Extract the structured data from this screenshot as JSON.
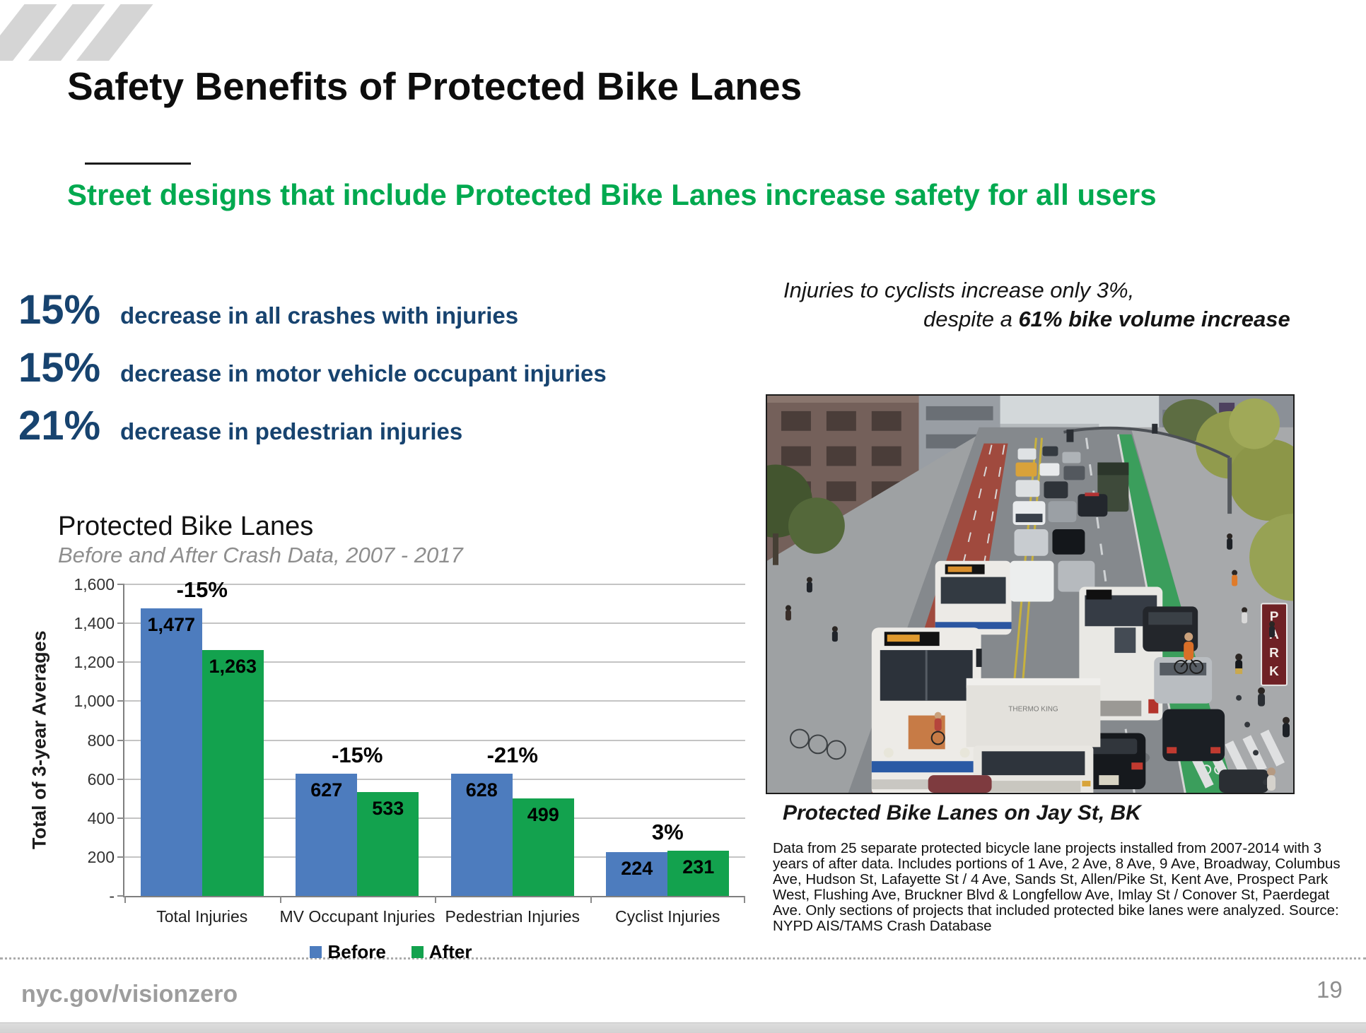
{
  "slide": {
    "title": "Safety Benefits of Protected Bike Lanes",
    "subtitle": "Street designs that include Protected Bike Lanes increase safety for all users",
    "footer_url": "nyc.gov/visionzero",
    "page_number": "19"
  },
  "stats": {
    "items": [
      {
        "pct": "15%",
        "label": "decrease in all crashes with injuries"
      },
      {
        "pct": "15%",
        "label": "decrease in motor vehicle occupant injuries"
      },
      {
        "pct": "21%",
        "label": "decrease in pedestrian injuries"
      }
    ]
  },
  "cyclist_note": {
    "line1": "Injuries to cyclists increase only 3%,",
    "line2_prefix": "despite a ",
    "line2_bold": "61% bike volume increase"
  },
  "photo": {
    "caption": "Protected Bike Lanes on Jay St, BK",
    "park_sign": "PARK",
    "truck_text": "THERMO KING"
  },
  "source_note": "Data from 25 separate protected bicycle lane projects installed from 2007-2014 with 3 years of after data. Includes portions of 1 Ave, 2 Ave, 8 Ave, 9 Ave, Broadway, Columbus Ave, Hudson St, Lafayette St / 4 Ave, Sands St, Allen/Pike St, Kent Ave, Prospect Park West, Flushing Ave, Bruckner Blvd & Longfellow Ave, Imlay St / Conover St, Paerdegat Ave. Only sections of projects that included protected bike lanes were analyzed. Source: NYPD AIS/TAMS Crash Database",
  "chart_data": {
    "type": "bar",
    "title": "Protected Bike Lanes",
    "subtitle": "Before and After Crash Data, 2007 - 2017",
    "ylabel": "Total of 3-year Averages",
    "xlabel": "",
    "ylim": [
      0,
      1600
    ],
    "grid": true,
    "legend_position": "bottom",
    "y_ticks": [
      {
        "value": 1600,
        "label": "1,600"
      },
      {
        "value": 1400,
        "label": "1,400"
      },
      {
        "value": 1200,
        "label": "1,200"
      },
      {
        "value": 1000,
        "label": "1,000"
      },
      {
        "value": 800,
        "label": "800"
      },
      {
        "value": 600,
        "label": "600"
      },
      {
        "value": 400,
        "label": "400"
      },
      {
        "value": 200,
        "label": "200"
      },
      {
        "value": 0,
        "label": "-"
      }
    ],
    "categories": [
      "Total Injuries",
      "MV Occupant Injuries",
      "Pedestrian Injuries",
      "Cyclist Injuries"
    ],
    "series": [
      {
        "name": "Before",
        "color": "#4d7cbe",
        "values": [
          1477,
          627,
          628,
          224
        ],
        "display_values": [
          "1,477",
          "627",
          "628",
          "224"
        ]
      },
      {
        "name": "After",
        "color": "#13a24e",
        "values": [
          1263,
          533,
          499,
          231
        ],
        "display_values": [
          "1,263",
          "533",
          "499",
          "231"
        ]
      }
    ],
    "pct_labels": [
      "-15%",
      "-15%",
      "-21%",
      "3%"
    ]
  },
  "colors": {
    "accent_green": "#00a94f",
    "stat_navy": "#17436f",
    "bar_before": "#4d7cbe",
    "bar_after": "#13a24e",
    "gridline": "#c4c4c4",
    "footer_gray": "#9d9d9d"
  }
}
